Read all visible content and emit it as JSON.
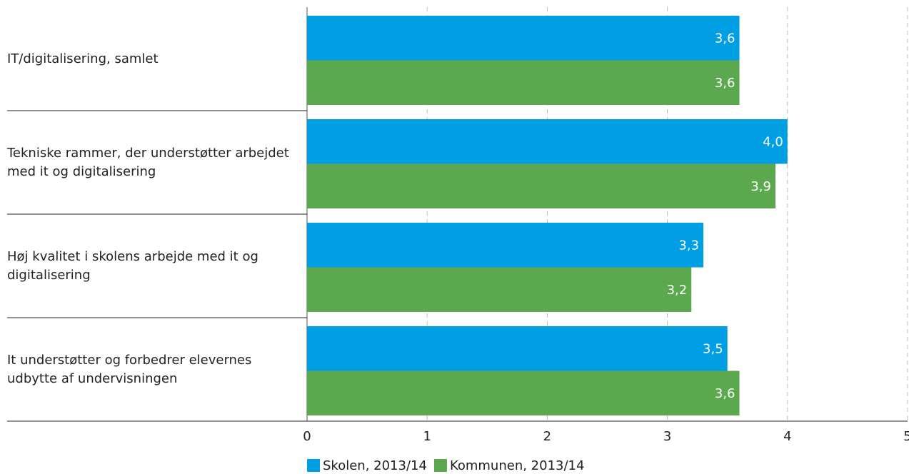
{
  "chart_data": {
    "type": "bar",
    "orientation": "horizontal",
    "categories": [
      "IT/digitalisering, samlet",
      "Tekniske rammer, der understøtter arbejdet med it og digitalisering",
      "Høj kvalitet i skolens arbejde med it og digitalisering",
      "It understøtter og forbedrer elevernes udbytte af undervisningen"
    ],
    "series": [
      {
        "name": "Skolen, 2013/14",
        "color": "#009fe3",
        "values": [
          3.6,
          4.0,
          3.3,
          3.5
        ],
        "value_labels": [
          "3,6",
          "4,0",
          "3,3",
          "3,5"
        ]
      },
      {
        "name": "Kommunen, 2013/14",
        "color": "#5ba84f",
        "values": [
          3.6,
          3.9,
          3.2,
          3.6
        ],
        "value_labels": [
          "3,6",
          "3,9",
          "3,2",
          "3,6"
        ]
      }
    ],
    "xlim": [
      0,
      5
    ],
    "xticks": [
      0,
      1,
      2,
      3,
      4,
      5
    ],
    "grid": true,
    "legend": "bottom"
  }
}
